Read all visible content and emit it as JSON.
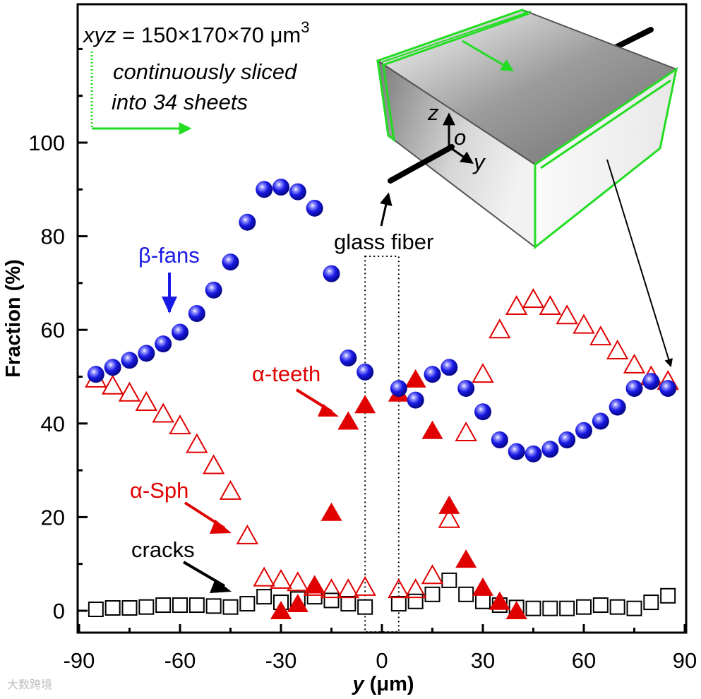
{
  "chart_data": {
    "type": "scatter",
    "title": "",
    "xlabel": "y (μm)",
    "xlabel_var": "y",
    "xlabel_unit": " (μm)",
    "ylabel": "Fraction (%)",
    "xlim": [
      -90,
      90
    ],
    "ylim": [
      -8,
      130
    ],
    "xticks": [
      -90,
      -60,
      -30,
      0,
      30,
      60,
      90
    ],
    "yticks": [
      0,
      20,
      40,
      60,
      80,
      100
    ],
    "series": [
      {
        "name": "β-fans",
        "marker": "sphere",
        "color": "#1a1ae6",
        "points": [
          [
            -85,
            50.5
          ],
          [
            -80,
            52
          ],
          [
            -75,
            53.5
          ],
          [
            -70,
            55
          ],
          [
            -65,
            57
          ],
          [
            -60,
            59.5
          ],
          [
            -55,
            63.5
          ],
          [
            -50,
            68.5
          ],
          [
            -45,
            74.5
          ],
          [
            -40,
            83
          ],
          [
            -35,
            90
          ],
          [
            -30,
            90.5
          ],
          [
            -25,
            89.5
          ],
          [
            -20,
            86
          ],
          [
            -15,
            72
          ],
          [
            -10,
            54
          ],
          [
            -5,
            51
          ],
          [
            5,
            47.5
          ],
          [
            10,
            45
          ],
          [
            15,
            50.5
          ],
          [
            20,
            52
          ],
          [
            25,
            47.5
          ],
          [
            30,
            42.5
          ],
          [
            35,
            36.5
          ],
          [
            40,
            34
          ],
          [
            45,
            33.5
          ],
          [
            50,
            34.5
          ],
          [
            55,
            36.5
          ],
          [
            60,
            38.5
          ],
          [
            65,
            40.5
          ],
          [
            70,
            43.5
          ],
          [
            75,
            47.5
          ],
          [
            80,
            49
          ],
          [
            85,
            47.5
          ]
        ]
      },
      {
        "name": "α-Sph",
        "marker": "open-triangle",
        "color": "#e00000",
        "points": [
          [
            -85,
            49.5
          ],
          [
            -80,
            48
          ],
          [
            -75,
            46.5
          ],
          [
            -70,
            44.5
          ],
          [
            -65,
            42
          ],
          [
            -60,
            39.5
          ],
          [
            -55,
            35.5
          ],
          [
            -50,
            31
          ],
          [
            -45,
            25.5
          ],
          [
            -40,
            16
          ],
          [
            -35,
            7
          ],
          [
            -30,
            6.5
          ],
          [
            -25,
            6
          ],
          [
            -20,
            5
          ],
          [
            -15,
            4.5
          ],
          [
            -10,
            4.5
          ],
          [
            -5,
            5
          ],
          [
            5,
            4.5
          ],
          [
            10,
            4.5
          ],
          [
            15,
            7.5
          ],
          [
            20,
            19.5
          ],
          [
            25,
            38
          ],
          [
            30,
            50.5
          ],
          [
            35,
            60
          ],
          [
            40,
            65
          ],
          [
            45,
            66.5
          ],
          [
            50,
            65
          ],
          [
            55,
            63
          ],
          [
            60,
            61
          ],
          [
            65,
            58.5
          ],
          [
            70,
            55.5
          ],
          [
            75,
            52.5
          ],
          [
            80,
            50
          ],
          [
            85,
            49
          ]
        ]
      },
      {
        "name": "α-teeth",
        "marker": "filled-triangle",
        "color": "#e00000",
        "points": [
          [
            -30,
            0
          ],
          [
            -25,
            1.5
          ],
          [
            -20,
            5.5
          ],
          [
            -15,
            21
          ],
          [
            -10,
            40.5
          ],
          [
            -5,
            44
          ],
          [
            5,
            46.5
          ],
          [
            10,
            49.5
          ],
          [
            15,
            38.5
          ],
          [
            20,
            22.5
          ],
          [
            25,
            11
          ],
          [
            30,
            5
          ],
          [
            35,
            2
          ],
          [
            40,
            0
          ]
        ]
      },
      {
        "name": "cracks",
        "marker": "open-square",
        "color": "#000000",
        "points": [
          [
            -85,
            0.3
          ],
          [
            -80,
            0.6
          ],
          [
            -75,
            0.6
          ],
          [
            -70,
            0.8
          ],
          [
            -65,
            1.2
          ],
          [
            -60,
            1.2
          ],
          [
            -55,
            1.2
          ],
          [
            -50,
            1
          ],
          [
            -45,
            0.8
          ],
          [
            -40,
            1.5
          ],
          [
            -35,
            3
          ],
          [
            -30,
            1.8
          ],
          [
            -25,
            2.5
          ],
          [
            -20,
            3
          ],
          [
            -15,
            2.2
          ],
          [
            -10,
            1.5
          ],
          [
            -5,
            0.8
          ],
          [
            5,
            1.5
          ],
          [
            10,
            2
          ],
          [
            15,
            3.5
          ],
          [
            20,
            6.5
          ],
          [
            25,
            3.5
          ],
          [
            30,
            2
          ],
          [
            35,
            1.2
          ],
          [
            40,
            0.7
          ],
          [
            45,
            0.5
          ],
          [
            50,
            0.5
          ],
          [
            55,
            0.5
          ],
          [
            60,
            0.8
          ],
          [
            65,
            1.2
          ],
          [
            70,
            0.8
          ],
          [
            75,
            0.5
          ],
          [
            80,
            1.8
          ],
          [
            85,
            3.2
          ]
        ]
      }
    ],
    "annotations": {
      "dims_var": "xyz",
      "dims_rest": " = 150×170×70 μm",
      "dims_exp": "3",
      "sliced_line1": "continuously sliced",
      "sliced_line2": "into 34 sheets",
      "glass_fiber": "glass fiber",
      "beta_fans": "β-fans",
      "alpha_teeth": "α-teeth",
      "alpha_sph": "α-Sph",
      "cracks": "cracks",
      "axis_z": "z",
      "axis_o": "o",
      "axis_y": "y"
    },
    "fiber_band_x": [
      -5,
      5
    ],
    "watermark": "大数跨境"
  },
  "colors": {
    "blue": "#1a1ae6",
    "red": "#e00000",
    "green": "#22dd22",
    "black": "#000000"
  }
}
